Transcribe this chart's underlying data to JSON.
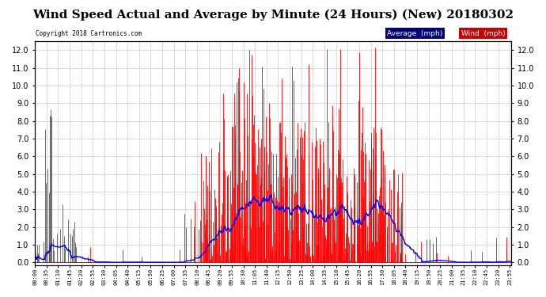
{
  "title": "Wind Speed Actual and Average by Minute (24 Hours) (New) 20180302",
  "copyright": "Copyright 2018 Cartronics.com",
  "ylim": [
    -0.15,
    12.5
  ],
  "yticks": [
    0.0,
    1.0,
    2.0,
    3.0,
    4.0,
    5.0,
    6.0,
    7.0,
    8.0,
    9.0,
    10.0,
    11.0,
    12.0
  ],
  "background_color": "#ffffff",
  "plot_bg_color": "#ffffff",
  "grid_color": "#bbbbbb",
  "wind_color": "#ff0000",
  "gray_color": "#555555",
  "avg_color": "#0000ff",
  "legend_avg_bg": "#000080",
  "legend_wind_bg": "#cc0000",
  "title_fontsize": 11,
  "total_minutes": 1440,
  "tick_interval": 35
}
